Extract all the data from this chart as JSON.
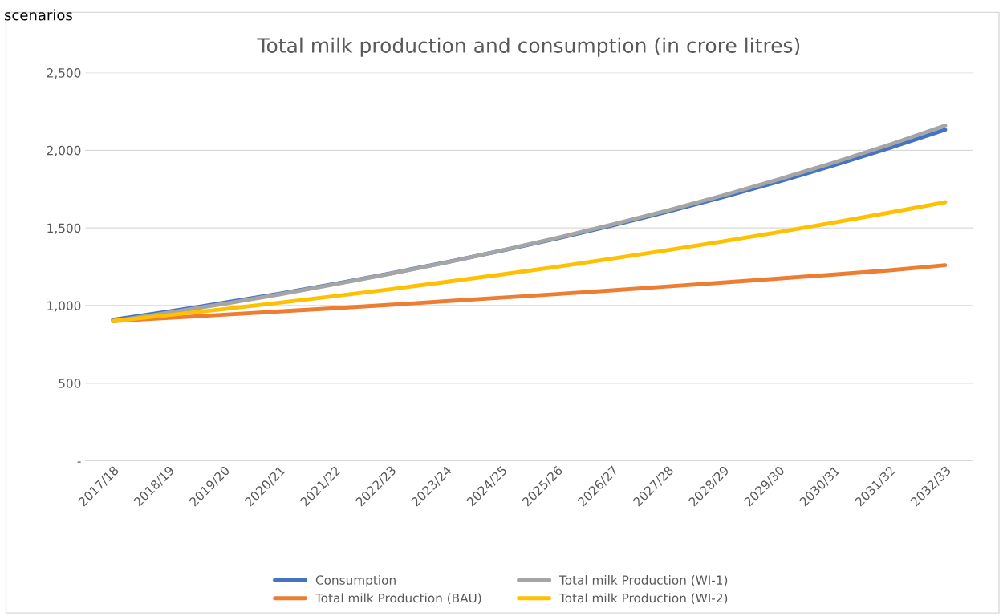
{
  "chart_data": {
    "type": "line",
    "title": "Total milk production and consumption (in crore litres)",
    "annotations": [
      "scenarios"
    ],
    "categories": [
      "2017/18",
      "2018/19",
      "2019/20",
      "2020/21",
      "2021/22",
      "2022/23",
      "2023/24",
      "2024/25",
      "2025/26",
      "2026/27",
      "2027/28",
      "2028/29",
      "2029/30",
      "2030/31",
      "2031/32",
      "2032/33"
    ],
    "series": [
      {
        "name": "Consumption",
        "color": "#4472c4",
        "values": [
          908,
          961,
          1018,
          1077,
          1140,
          1207,
          1278,
          1353,
          1432,
          1516,
          1605,
          1699,
          1798,
          1904,
          2015,
          2133
        ]
      },
      {
        "name": "Total milk Production (BAU)",
        "color": "#ed7d31",
        "values": [
          900,
          920,
          941,
          962,
          983,
          1005,
          1028,
          1051,
          1074,
          1098,
          1123,
          1148,
          1174,
          1200,
          1227,
          1260
        ]
      },
      {
        "name": "Total milk Production (WI-1)",
        "color": "#a5a5a5",
        "values": [
          900,
          954,
          1011,
          1072,
          1137,
          1205,
          1277,
          1354,
          1436,
          1522,
          1613,
          1710,
          1813,
          1922,
          2037,
          2160
        ]
      },
      {
        "name": "Total milk Production (WI-2)",
        "color": "#ffc000",
        "values": [
          900,
          938,
          977,
          1018,
          1061,
          1105,
          1152,
          1200,
          1250,
          1303,
          1357,
          1414,
          1473,
          1535,
          1599,
          1666
        ]
      }
    ],
    "ylim": [
      0,
      2500
    ],
    "yticks": [
      {
        "value": 0,
        "label": "-"
      },
      {
        "value": 500,
        "label": "500"
      },
      {
        "value": 1000,
        "label": "1,000"
      },
      {
        "value": 1500,
        "label": "1,500"
      },
      {
        "value": 2000,
        "label": "2,000"
      },
      {
        "value": 2500,
        "label": "2,500"
      }
    ],
    "grid": "y",
    "legend": "bottom",
    "marker": "none",
    "line_style": "solid"
  }
}
